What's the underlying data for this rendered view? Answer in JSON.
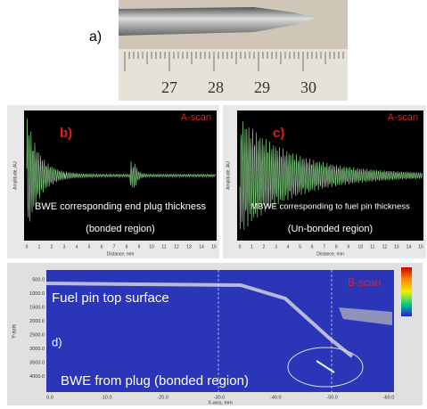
{
  "panel_a": {
    "label": "a)",
    "ruler_numbers": [
      "27",
      "28",
      "29",
      "30"
    ]
  },
  "panel_b": {
    "label": "b)",
    "tag": "A-scan",
    "caption": [
      "BWE corresponding end plug thickness",
      "(bonded region)"
    ],
    "x_ticks": [
      "0",
      "1",
      "2",
      "3",
      "4",
      "5",
      "6",
      "7",
      "8",
      "9",
      "10",
      "11",
      "12",
      "13",
      "14",
      "15"
    ],
    "x_axis_label": "Distance, mm",
    "y_axis_label": "Amplitude, AU"
  },
  "panel_c": {
    "label": "c)",
    "tag": "A-scan",
    "caption": [
      "MBWE corresponding to fuel pin thickness",
      "(Un-bonded region)"
    ],
    "x_ticks": [
      "0",
      "1",
      "2",
      "3",
      "4",
      "5",
      "6",
      "7",
      "8",
      "9",
      "10",
      "11",
      "12",
      "13",
      "14",
      "15"
    ],
    "x_axis_label": "Distance, mm",
    "y_axis_label": "Amplitude, AU"
  },
  "panel_d": {
    "label": "d)",
    "tag": "B-scan",
    "caption": [
      "Fuel pin top surface",
      "BWE from plug (bonded region)"
    ],
    "y_ticks": [
      "500.0",
      "1000.0",
      "1500.0",
      "2000.0",
      "2500.0",
      "3000.0",
      "3500.0",
      "4000.0"
    ],
    "x_ticks": [
      "0.0",
      "-10.0",
      "-20.0",
      "-30.0",
      "-40.0",
      "-50.0",
      "-60.0"
    ],
    "x_axis_label": "X-axis, mm",
    "y_axis_label": "Y-axis"
  }
}
